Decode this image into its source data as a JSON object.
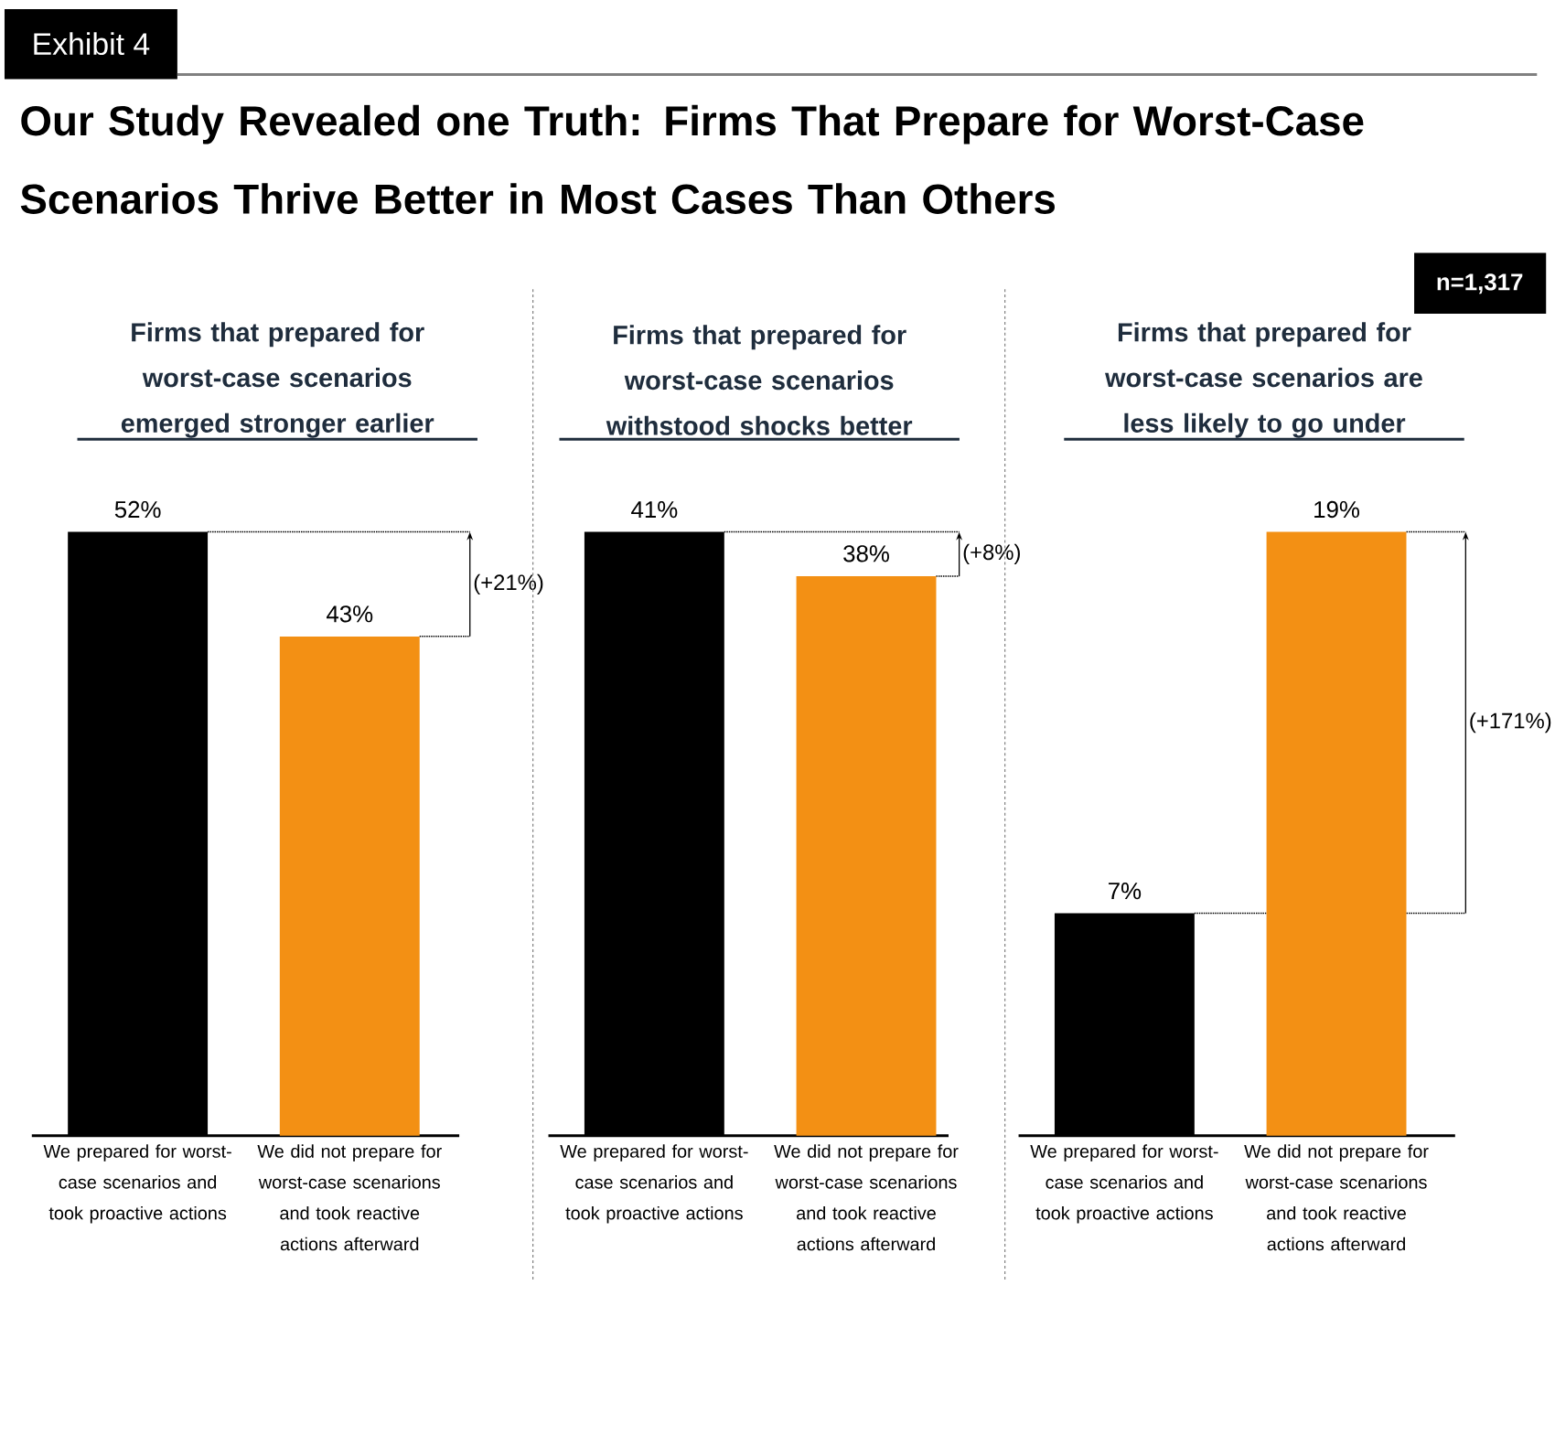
{
  "chart_data": [
    {
      "type": "other",
      "title": "Our Study Revealed one Truth: Firms That Prepare for Worst-Case Scenarios Thrive Better in Most Cases Than Others",
      "annotations": [
        "Exhibit 4",
        "n=1,317"
      ]
    },
    {
      "type": "bar",
      "title": "Firms that prepared for worst-case scenarios emerged stronger earlier",
      "categories": [
        "We prepared for worst-case scenarios and took proactive actions",
        "We did not prepare for worst-case scenarions and took reactive actions afterward"
      ],
      "values": [
        52,
        43
      ],
      "colors": [
        "#000000",
        "#f39014"
      ],
      "value_labels": [
        "52%",
        "43%"
      ],
      "annotations": [
        "(+21%)"
      ]
    },
    {
      "type": "bar",
      "title": "Firms that prepared for worst-case scenarios withstood shocks better",
      "categories": [
        "We prepared for worst-case scenarios and took proactive actions",
        "We did not prepare for worst-case scenarions and took reactive actions afterward"
      ],
      "values": [
        41,
        38
      ],
      "colors": [
        "#000000",
        "#f39014"
      ],
      "value_labels": [
        "41%",
        "38%"
      ],
      "annotations": [
        "(+8%)"
      ]
    },
    {
      "type": "bar",
      "title": "Firms that prepared for worst-case scenarios are less likely to go under",
      "categories": [
        "We prepared for worst-case scenarios and took proactive actions",
        "We did not prepare for worst-case scenarions and took reactive actions afterward"
      ],
      "values": [
        7,
        19
      ],
      "colors": [
        "#000000",
        "#f39014"
      ],
      "value_labels": [
        "7%",
        "19%"
      ],
      "annotations": [
        "(+171%)"
      ]
    }
  ]
}
